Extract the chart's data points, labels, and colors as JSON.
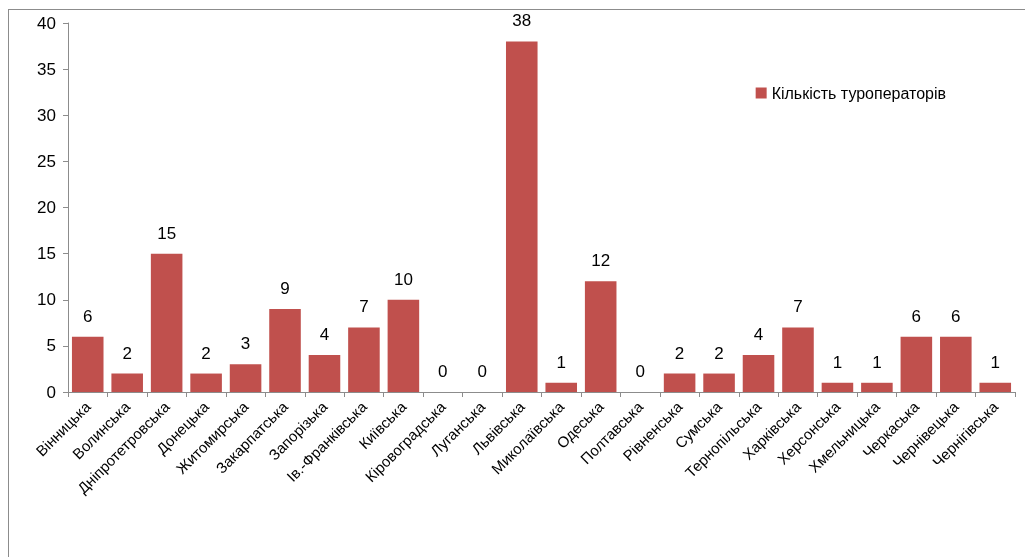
{
  "chart_data": {
    "type": "bar",
    "categories": [
      "Вінницька",
      "Волинська",
      "Дніпротетровська",
      "Донецька",
      "Житомирська",
      "Закарпатська",
      "Запорізька",
      "Ів.-Франківська",
      "Київська",
      "Кіровоградська",
      "Луганська",
      "Львівська",
      "Миколаївська",
      "Одеська",
      "Полтавська",
      "Рівненська",
      "Сумська",
      "Тернопільська",
      "Харківська",
      "Херсонська",
      "Хмельницька",
      "Черкаська",
      "Чернівецька",
      "Чернігівська"
    ],
    "series": [
      {
        "name": "Кількість туроператорів",
        "color": "#c0504d",
        "values": [
          6,
          2,
          15,
          2,
          3,
          9,
          4,
          7,
          10,
          0,
          0,
          38,
          1,
          12,
          0,
          2,
          2,
          4,
          7,
          1,
          1,
          6,
          6,
          1
        ]
      }
    ],
    "ylim": [
      0,
      40
    ],
    "yticks": [
      0,
      5,
      10,
      15,
      20,
      25,
      30,
      35,
      40
    ],
    "grid": false,
    "legend": "top right",
    "data_labels": true
  }
}
